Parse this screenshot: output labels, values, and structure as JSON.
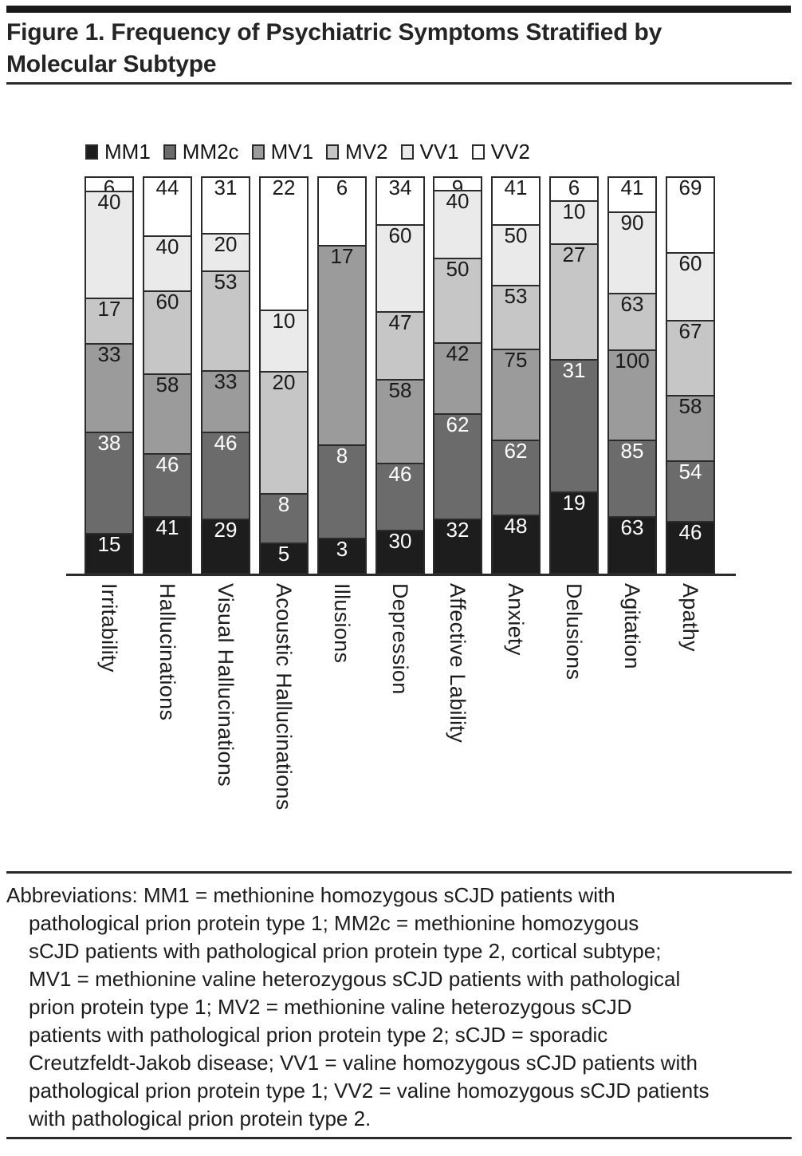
{
  "title_lines": [
    "Figure 1. Frequency of Psychiatric Symptoms Stratified by",
    "Molecular Subtype"
  ],
  "chart_data": {
    "type": "bar",
    "stacked": true,
    "title": "Figure 1. Frequency of Psychiatric Symptoms Stratified by Molecular Subtype",
    "legend_position": "top",
    "bars_normalized_to_equal_height": true,
    "zero_segments_omitted": true,
    "stack_order_top_to_bottom": [
      "VV2",
      "VV1",
      "MV2",
      "MV1",
      "MM2c",
      "MM1"
    ],
    "categories": [
      "Irritability",
      "Hallucinations",
      "Visual Hallucinations",
      "Acoustic Hallucinations",
      "Illusions",
      "Depression",
      "Affective Lability",
      "Anxiety",
      "Delusions",
      "Agitation",
      "Apathy"
    ],
    "series": [
      {
        "name": "MM1",
        "color": "#1d1d1d",
        "label_color": "#ffffff",
        "values": [
          15,
          41,
          29,
          5,
          3,
          30,
          32,
          48,
          19,
          63,
          46
        ]
      },
      {
        "name": "MM2c",
        "color": "#6b6b6b",
        "label_color": "#ffffff",
        "values": [
          38,
          46,
          46,
          8,
          8,
          46,
          62,
          62,
          31,
          85,
          54
        ]
      },
      {
        "name": "MV1",
        "color": "#9b9b9b",
        "label_color": "#1a1a1a",
        "values": [
          33,
          58,
          33,
          0,
          17,
          58,
          42,
          75,
          0,
          100,
          58
        ]
      },
      {
        "name": "MV2",
        "color": "#c6c6c6",
        "label_color": "#1a1a1a",
        "values": [
          17,
          60,
          53,
          20,
          0,
          47,
          50,
          53,
          27,
          63,
          67
        ]
      },
      {
        "name": "VV1",
        "color": "#eaeaea",
        "label_color": "#1a1a1a",
        "values": [
          40,
          40,
          20,
          10,
          0,
          60,
          40,
          50,
          10,
          90,
          60
        ]
      },
      {
        "name": "VV2",
        "color": "#ffffff",
        "label_color": "#1a1a1a",
        "values": [
          6,
          44,
          31,
          22,
          6,
          34,
          9,
          41,
          6,
          41,
          69
        ]
      }
    ]
  },
  "abbreviations_lines": [
    "Abbreviations: MM1 = methionine homozygous sCJD patients with",
    "pathological prion protein type 1; MM2c = methionine homozygous",
    "sCJD patients with pathological prion protein type 2, cortical subtype;",
    "MV1 = methionine valine heterozygous sCJD patients with pathological",
    "prion protein type 1; MV2 = methionine valine heterozygous sCJD",
    "patients with pathological prion protein type 2; sCJD = sporadic",
    "Creutzfeldt-Jakob disease; VV1 = valine homozygous sCJD patients with",
    "pathological prion protein type 1; VV2 = valine homozygous sCJD patients",
    "with pathological prion protein type 2."
  ],
  "colors": {
    "border": "#2b2b2b",
    "rule": "#2b2b2b",
    "top_band": "#191919",
    "text": "#1c1c1c"
  }
}
